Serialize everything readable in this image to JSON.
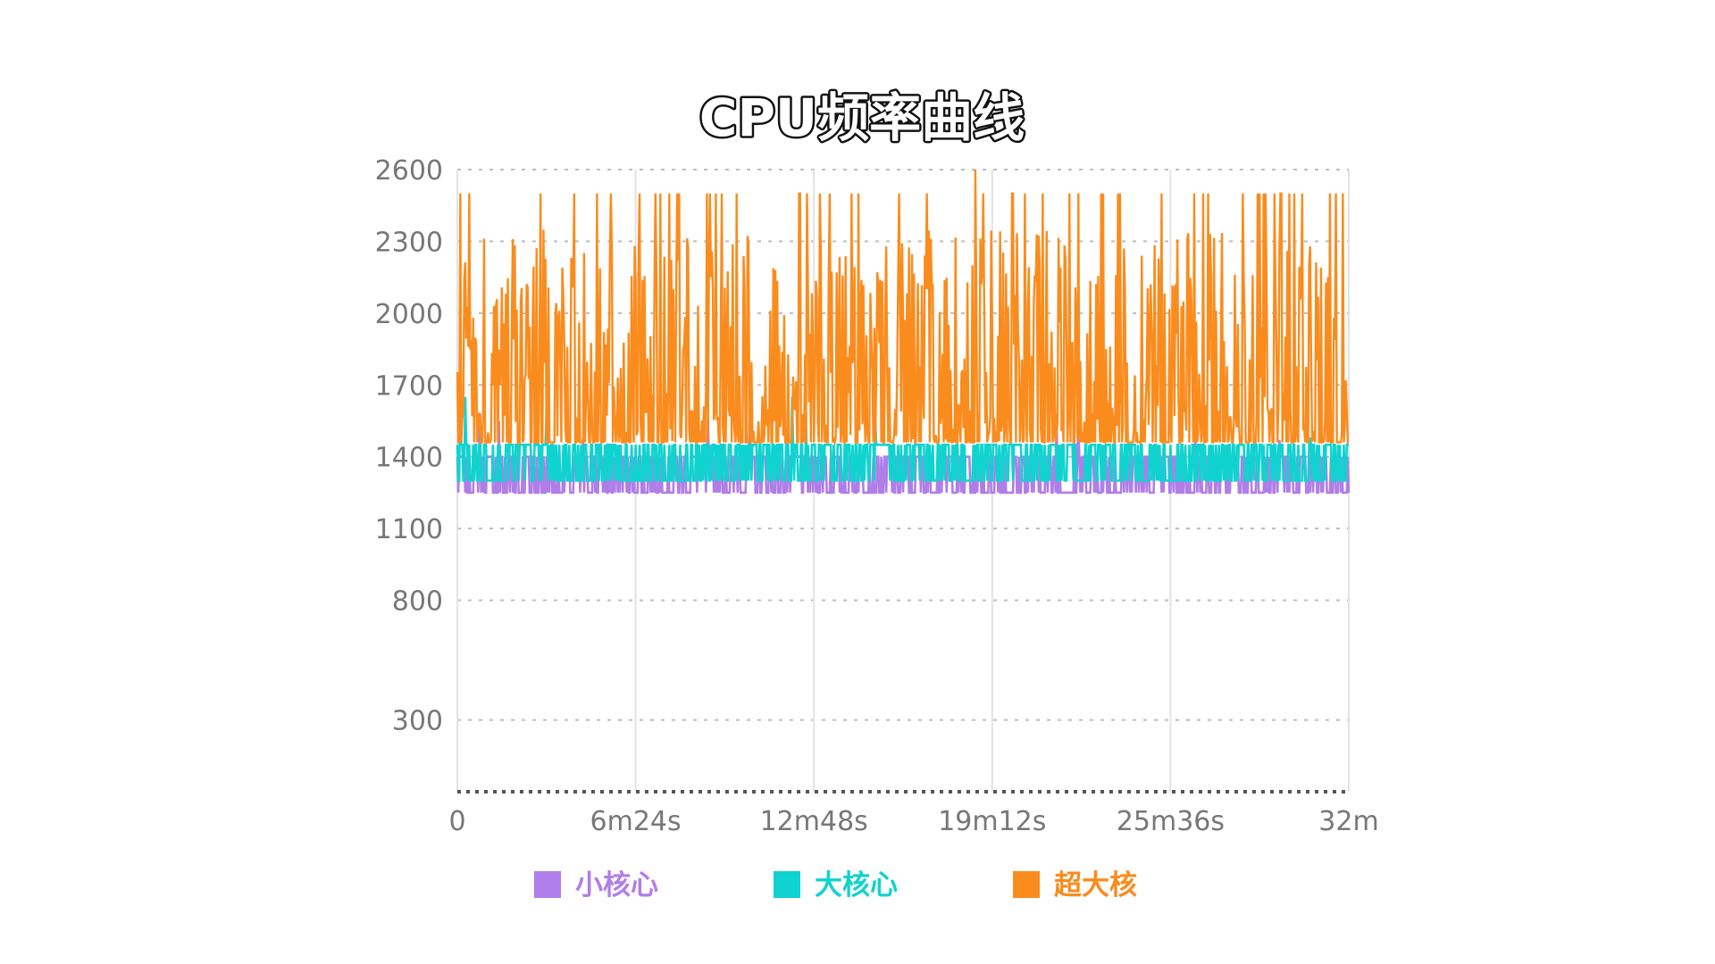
{
  "chart_data": {
    "type": "line",
    "title": "CPU频率曲线",
    "xlabel": "",
    "ylabel": "",
    "x_ticks": [
      "0",
      "6m24s",
      "12m48s",
      "19m12s",
      "25m36s",
      "32m"
    ],
    "y_ticks": [
      300,
      800,
      1100,
      1400,
      1700,
      2000,
      2300,
      2600
    ],
    "ylim": [
      0,
      2600
    ],
    "xlim_minutes": [
      0,
      32
    ],
    "grid": true,
    "legend_position": "bottom",
    "series": [
      {
        "name": "小核心",
        "color": "#b07ee8",
        "low": 1250,
        "high": 1400,
        "spikes": [
          [
            0.8,
            1580
          ],
          [
            1.5,
            1550
          ],
          [
            4.5,
            1480
          ],
          [
            9.0,
            1560
          ],
          [
            10.5,
            1550
          ],
          [
            11.8,
            1480
          ],
          [
            21.5,
            1580
          ],
          [
            22.3,
            1550
          ],
          [
            26.5,
            1480
          ],
          [
            29.5,
            1470
          ]
        ]
      },
      {
        "name": "大核心",
        "color": "#10d3d0",
        "low": 1300,
        "high": 1450,
        "spikes": [
          [
            0.1,
            1800
          ],
          [
            0.3,
            1650
          ],
          [
            2.8,
            1650
          ],
          [
            3.2,
            1600
          ],
          [
            12.0,
            1650
          ],
          [
            12.5,
            1580
          ],
          [
            15.0,
            1550
          ],
          [
            30.6,
            1480
          ]
        ]
      },
      {
        "name": "超大核",
        "color": "#fa8c1e",
        "low": 1460,
        "high": 2500,
        "max": 2600,
        "peak_at_minutes": 18.6
      }
    ]
  }
}
